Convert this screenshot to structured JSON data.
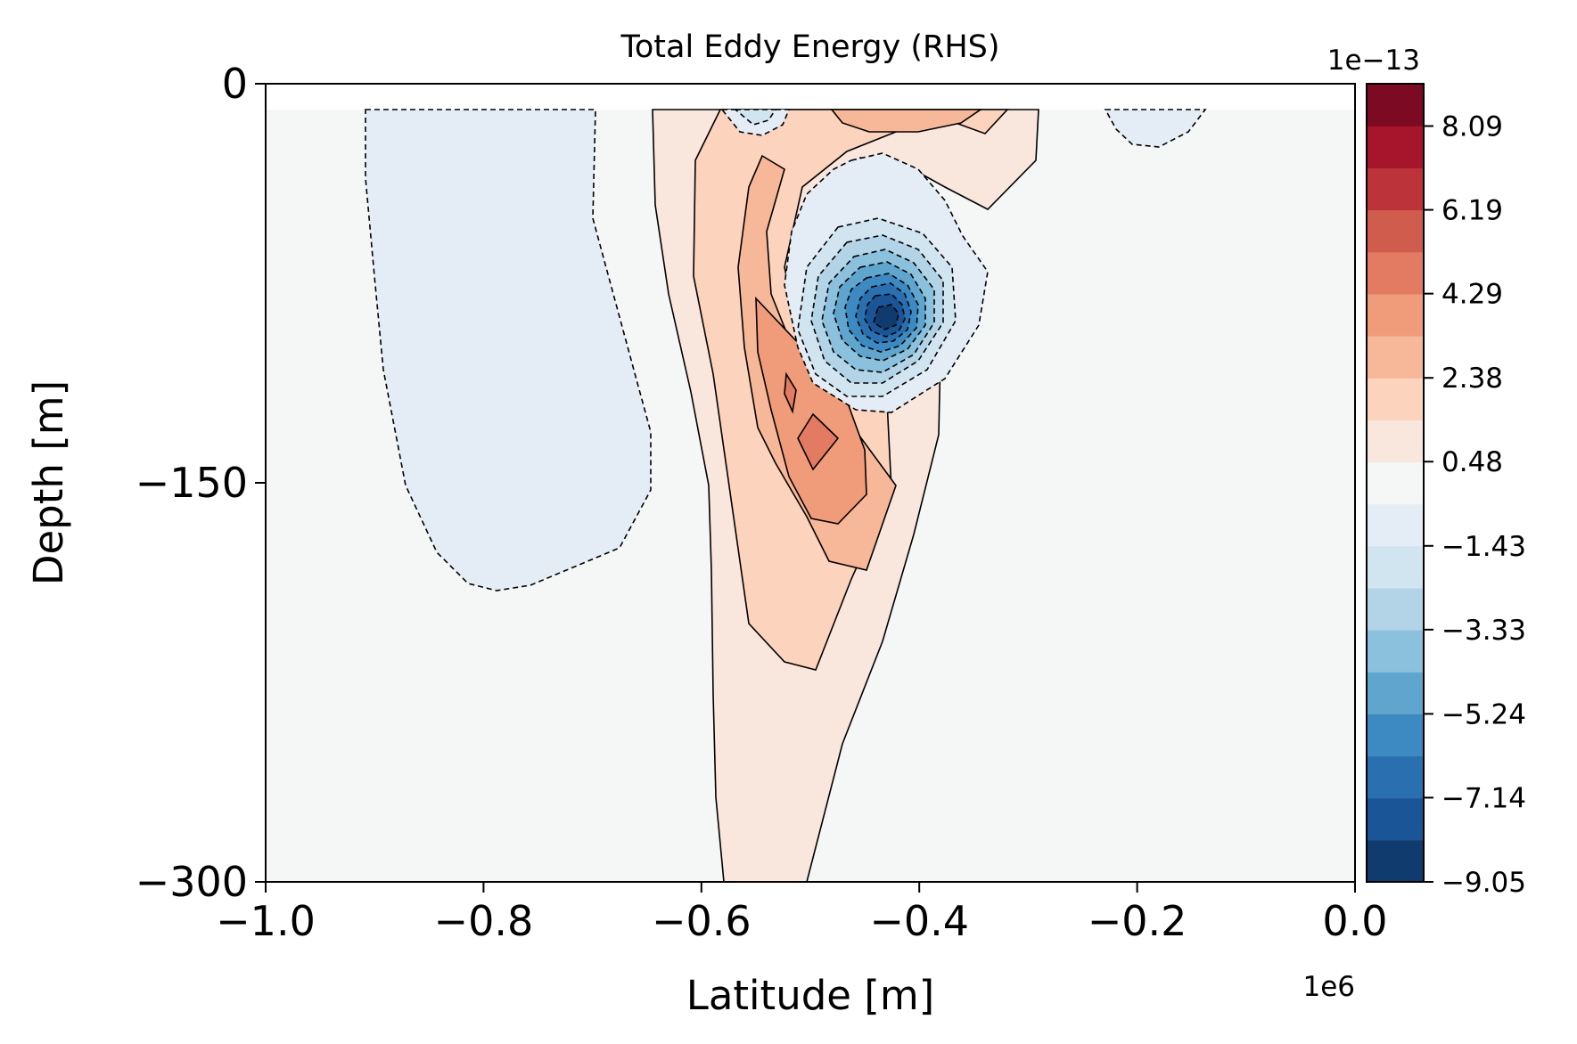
{
  "chart_data": {
    "type": "contour",
    "title": "Total Eddy Energy (RHS)",
    "xlabel": "Latitude [m]",
    "ylabel": "Depth [m]",
    "x_scale_label": "1e6",
    "xlim": [
      -1000000,
      0
    ],
    "ylim": [
      -300,
      0
    ],
    "x_ticks": [
      -1000000,
      -800000,
      -600000,
      -400000,
      -200000,
      0
    ],
    "x_tick_labels": [
      "−1.0",
      "−0.8",
      "−0.6",
      "−0.4",
      "−0.2",
      "0.0"
    ],
    "y_ticks": [
      0,
      -150,
      -300
    ],
    "y_tick_labels": [
      "0",
      "−150",
      "−300"
    ],
    "colorbar": {
      "scale_label": "1e−13",
      "colormap": "RdBu_r",
      "vmin": -9.05,
      "vmax": 9.05,
      "level_count": 19,
      "tick_values": [
        8.09,
        6.19,
        4.29,
        2.38,
        0.48,
        -1.43,
        -3.33,
        -5.24,
        -7.14,
        -9.05
      ],
      "tick_labels": [
        "8.09",
        "6.19",
        "4.29",
        "2.38",
        "0.48",
        "−1.43",
        "−3.33",
        "−5.24",
        "−7.14",
        "−9.05"
      ],
      "colors": [
        "#0f3b6e",
        "#1a5597",
        "#2a70b1",
        "#3c8ac1",
        "#5fa5cd",
        "#8bc1dd",
        "#b2d4e6",
        "#d1e5f0",
        "#e4edf5",
        "#f5f7f6",
        "#f9e6dd",
        "#fcd3bc",
        "#f7b799",
        "#f09c7b",
        "#e27b62",
        "#d05c4d",
        "#bc343a",
        "#a6152b",
        "#7c0a22"
      ]
    },
    "features": [
      {
        "name": "left-negative-region",
        "sign": "negative",
        "level": -1.43
      },
      {
        "name": "negative-core",
        "sign": "negative",
        "peak": -9.05,
        "center": [
          -430000,
          -90
        ]
      },
      {
        "name": "positive-tongue",
        "sign": "positive",
        "peak": 5.2,
        "center": [
          -495000,
          -135
        ]
      },
      {
        "name": "surface-positive-patch",
        "sign": "positive",
        "peak": 3.3,
        "center": [
          -420000,
          -10
        ]
      },
      {
        "name": "surface-negative-small",
        "sign": "negative",
        "peak": -2.4,
        "center": [
          -515000,
          -8
        ]
      },
      {
        "name": "top-right-negative-patch",
        "sign": "negative",
        "level": -1.43,
        "center": [
          -180000,
          -10
        ]
      }
    ]
  }
}
